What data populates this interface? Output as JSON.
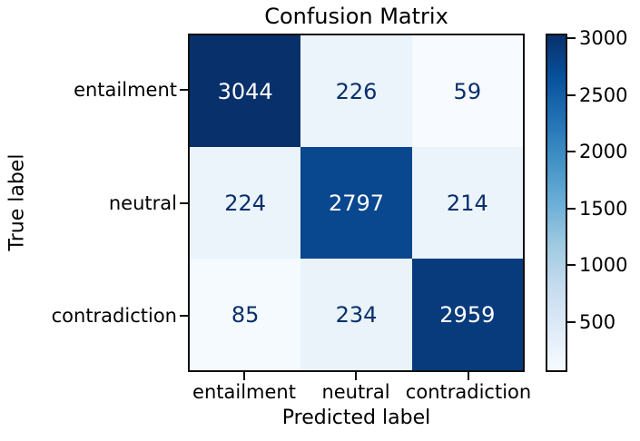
{
  "title": "Confusion Matrix",
  "chart_data": {
    "type": "heatmap",
    "title": "Confusion Matrix",
    "xlabel": "Predicted label",
    "ylabel": "True label",
    "row_labels": [
      "entailment",
      "neutral",
      "contradiction"
    ],
    "col_labels": [
      "entailment",
      "neutral",
      "contradiction"
    ],
    "matrix": [
      [
        3044,
        226,
        59
      ],
      [
        224,
        2797,
        214
      ],
      [
        85,
        234,
        2959
      ]
    ],
    "vmin": 59,
    "vmax": 3044,
    "colorbar_ticks": [
      500,
      1000,
      1500,
      2000,
      2500,
      3000
    ],
    "colormap": "Blues",
    "colormap_stops": [
      "#f7fbff",
      "#deebf7",
      "#c6dbef",
      "#9ecae1",
      "#6baed6",
      "#4292c6",
      "#2171b5",
      "#08519c",
      "#08306b"
    ],
    "cell_colors": [
      [
        "#08306b",
        "#ebf3fb",
        "#f7fbff"
      ],
      [
        "#ebf3fb",
        "#09478e",
        "#ecf4fb"
      ],
      [
        "#f5fafe",
        "#eaf2fa",
        "#083b7c"
      ]
    ],
    "cell_text_colors": [
      [
        "#ffffff",
        "#08306b",
        "#08306b"
      ],
      [
        "#08306b",
        "#ffffff",
        "#08306b"
      ],
      [
        "#08306b",
        "#08306b",
        "#ffffff"
      ]
    ],
    "axis_color": "#0f0f0f",
    "legend_position": "right-colorbar",
    "grid": false
  }
}
